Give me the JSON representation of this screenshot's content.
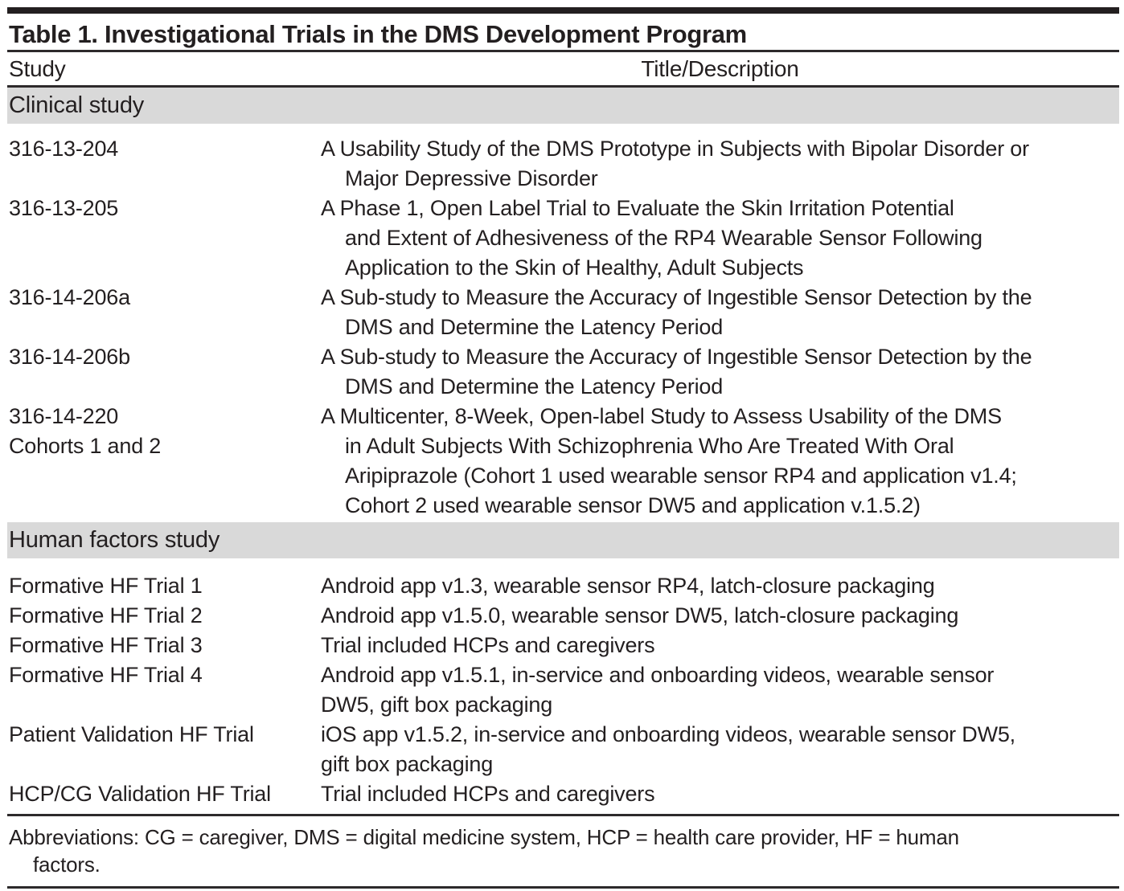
{
  "title": "Table 1. Investigational Trials in the DMS Development Program",
  "columns": {
    "study": "Study",
    "description": "Title/Description"
  },
  "sections": [
    {
      "label": "Clinical study",
      "rows": [
        {
          "study": "316-13-204",
          "description": "A Usability Study of the DMS Prototype in Subjects with Bipolar Disorder or\nMajor Depressive Disorder"
        },
        {
          "study": "316-13-205",
          "description": "A Phase 1, Open Label Trial to Evaluate the Skin Irritation Potential\nand Extent of Adhesiveness of the RP4 Wearable Sensor Following\nApplication to the Skin of Healthy, Adult Subjects"
        },
        {
          "study": "316-14-206a",
          "description": "A Sub-study to Measure the Accuracy of Ingestible Sensor Detection by the\nDMS and Determine the Latency Period"
        },
        {
          "study": "316-14-206b",
          "description": "A Sub-study to Measure the Accuracy of Ingestible Sensor Detection by the\nDMS and Determine the Latency Period"
        },
        {
          "study": "316-14-220\nCohorts 1 and 2",
          "description": "A Multicenter, 8-Week, Open-label Study to Assess Usability of the DMS\nin Adult Subjects With Schizophrenia Who Are Treated With Oral\nAripiprazole (Cohort 1 used wearable sensor RP4 and application v1.4;\nCohort 2 used wearable sensor DW5 and application v.1.5.2)"
        }
      ]
    },
    {
      "label": "Human factors study",
      "rows": [
        {
          "study": "Formative HF Trial 1",
          "description": "Android app v1.3, wearable sensor RP4, latch-closure packaging"
        },
        {
          "study": "Formative HF Trial 2",
          "description": "Android app v1.5.0, wearable sensor DW5, latch-closure packaging"
        },
        {
          "study": "Formative HF Trial 3",
          "description": "Trial included HCPs and caregivers"
        },
        {
          "study": "Formative HF Trial 4",
          "description": "Android app v1.5.1, in-service and onboarding videos, wearable sensor\nDW5, gift box packaging"
        },
        {
          "study": "Patient Validation HF Trial",
          "description": "iOS app v1.5.2, in-service and onboarding videos, wearable sensor DW5,\ngift box packaging"
        },
        {
          "study": "HCP/CG Validation HF Trial",
          "description": "Trial included HCPs and caregivers"
        }
      ]
    }
  ],
  "footnote": "Abbreviations: CG = caregiver, DMS = digital medicine system, HCP = health care provider, HF = human\nfactors.",
  "colors": {
    "text": "#231f20",
    "section_band": "#d9d9d9",
    "rule": "#2d2a2b"
  }
}
